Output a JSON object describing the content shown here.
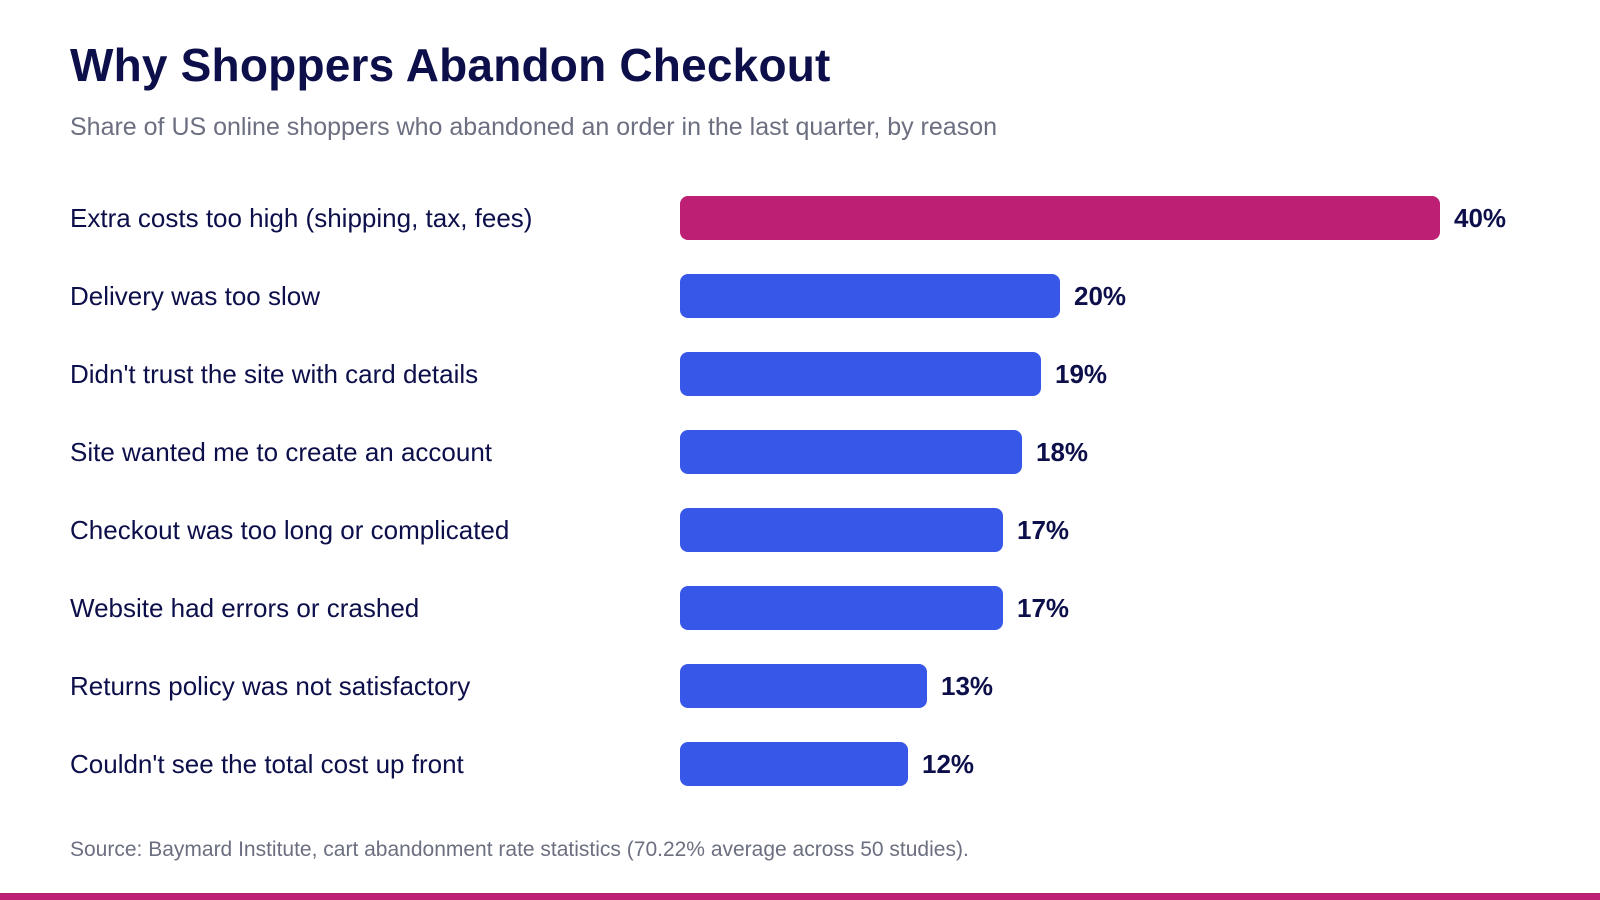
{
  "title": "Why Shoppers Abandon Checkout",
  "subtitle": "Share of US online shoppers who abandoned an order in the last quarter, by reason",
  "source": "Source: Baymard Institute, cart abandonment rate statistics (70.22% average across 50 studies).",
  "colors": {
    "highlight": "#bd1f74",
    "bar": "#3657e8",
    "text": "#0d0f4a",
    "muted": "#6b6f80",
    "rule": "#bd1f74"
  },
  "chart_data": {
    "type": "bar",
    "orientation": "horizontal",
    "categories": [
      "Extra costs too high (shipping, tax, fees)",
      "Delivery was too slow",
      "Didn't trust the site with card details",
      "Site wanted me to create an account",
      "Checkout was too long or complicated",
      "Website had errors or crashed",
      "Returns policy was not satisfactory",
      "Couldn't see the total cost up front"
    ],
    "values": [
      40,
      20,
      19,
      18,
      17,
      17,
      13,
      12
    ],
    "value_labels": [
      "40%",
      "20%",
      "19%",
      "18%",
      "17%",
      "17%",
      "13%",
      "12%"
    ],
    "highlight_index": 0,
    "xlim": [
      0,
      40
    ],
    "grid": false,
    "legend": "none"
  }
}
